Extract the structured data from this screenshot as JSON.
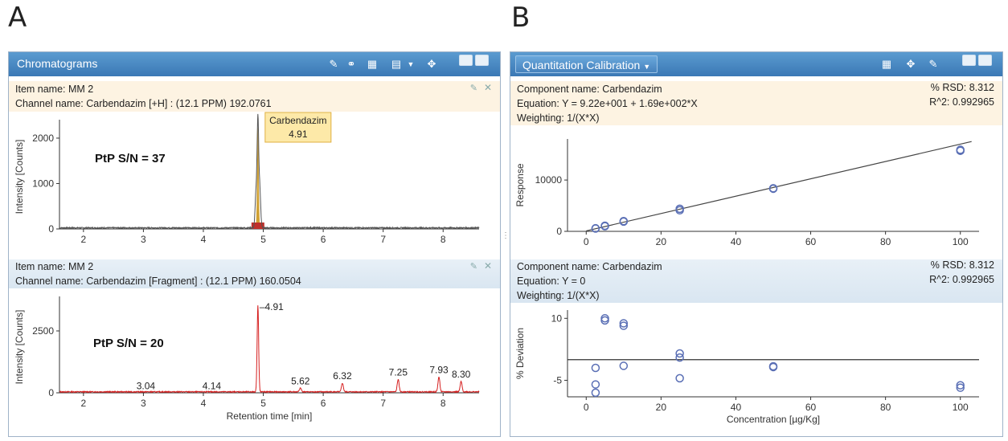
{
  "panel_labels": {
    "a": "A",
    "b": "B"
  },
  "chromatograms": {
    "title": "Chromatograms",
    "upper": {
      "item_name": "Item name: MM 2",
      "channel_name": "Channel name: Carbendazim [+H] : (12.1 PPM) 192.0761",
      "callout_name": "Carbendazim",
      "callout_value": "4.91",
      "sn_label": "PtP S/N = 37",
      "ylabel": "Intensity [Counts]",
      "yticks": [
        "0",
        "1000",
        "2000"
      ],
      "xticks": [
        "2",
        "3",
        "4",
        "5",
        "6",
        "7",
        "8"
      ],
      "trace_color": "#555555",
      "peak_fill": "#c89010"
    },
    "lower": {
      "item_name": "Item name: MM 2",
      "channel_name": "Channel name: Carbendazim [Fragment] : (12.1 PPM) 160.0504",
      "sn_label": "PtP S/N = 20",
      "ylabel": "Intensity [Counts]",
      "xlabel": "Retention time [min]",
      "yticks": [
        "0",
        "2500"
      ],
      "xticks": [
        "2",
        "3",
        "4",
        "5",
        "6",
        "7",
        "8"
      ],
      "peak_labels": [
        "3.04",
        "4.14",
        "4.91",
        "5.62",
        "6.32",
        "7.25",
        "7.93",
        "8.30"
      ],
      "trace_color": "#d62020"
    }
  },
  "calibration": {
    "title": "Quantitation Calibration",
    "upper": {
      "component": "Component name: Carbendazim",
      "equation": "Equation: Y = 9.22e+001 + 1.69e+002*X",
      "weighting": "Weighting: 1/(X*X)",
      "rsd": "% RSD: 8.312",
      "r2": "R^2: 0.992965",
      "ylabel": "Response",
      "yticks": [
        "0",
        "10000"
      ],
      "xticks": [
        "0",
        "20",
        "40",
        "60",
        "80",
        "100"
      ]
    },
    "lower": {
      "component": "Component name: Carbendazim",
      "equation": "Equation: Y = 0",
      "weighting": "Weighting: 1/(X*X)",
      "rsd": "% RSD: 8.312",
      "r2": "R^2: 0.992965",
      "ylabel": "% Deviation",
      "xlabel": "Concentration [µg/Kg]",
      "yticks": [
        "10",
        "-5"
      ],
      "xticks": [
        "0",
        "20",
        "40",
        "60",
        "80",
        "100"
      ]
    }
  },
  "chart_data": [
    {
      "type": "line",
      "title": "Channel name: Carbendazim [+H] : (12.1 PPM) 192.0761",
      "xlabel": "",
      "ylabel": "Intensity [Counts]",
      "xlim": [
        1.6,
        8.6
      ],
      "ylim": [
        0,
        2300
      ],
      "series": [
        {
          "name": "",
          "x": [
            1.6,
            3.5,
            4.6,
            4.85,
            4.88,
            4.91,
            4.94,
            4.97,
            5.05,
            5.5,
            5.7,
            6.2,
            7.5,
            8.6
          ],
          "y": [
            10,
            30,
            10,
            20,
            800,
            2250,
            900,
            30,
            60,
            50,
            80,
            20,
            20,
            10
          ]
        }
      ],
      "annotations": [
        {
          "x": 4.91,
          "text": "Carbendazim 4.91"
        }
      ]
    },
    {
      "type": "line",
      "title": "Channel name: Carbendazim [Fragment] : (12.1 PPM) 160.0504",
      "xlabel": "Retention time [min]",
      "ylabel": "Intensity [Counts]",
      "xlim": [
        1.6,
        8.6
      ],
      "ylim": [
        0,
        3700
      ],
      "series": [
        {
          "name": "",
          "x": [
            1.6,
            3.04,
            4.14,
            4.85,
            4.91,
            4.97,
            5.62,
            6.32,
            7.25,
            7.93,
            8.3,
            8.6
          ],
          "y": [
            20,
            40,
            40,
            60,
            3500,
            60,
            150,
            350,
            500,
            600,
            420,
            40
          ]
        }
      ],
      "peak_labels": [
        3.04,
        4.14,
        4.91,
        5.62,
        6.32,
        7.25,
        7.93,
        8.3
      ]
    },
    {
      "type": "scatter",
      "title": "",
      "xlabel": "",
      "ylabel": "Response",
      "xlim": [
        -5,
        105
      ],
      "ylim": [
        0,
        18000
      ],
      "series": [
        {
          "name": "",
          "x": [
            2.5,
            2.5,
            5,
            5,
            10,
            10,
            25,
            25,
            50,
            50,
            100,
            100
          ],
          "y": [
            550,
            600,
            1000,
            1100,
            1900,
            2000,
            4100,
            4400,
            8300,
            8400,
            15700,
            15900
          ]
        }
      ],
      "fit_line": {
        "intercept": 92.2,
        "slope": 169
      }
    },
    {
      "type": "scatter",
      "title": "",
      "xlabel": "Concentration [µg/Kg]",
      "ylabel": "% Deviation",
      "xlim": [
        -5,
        105
      ],
      "ylim": [
        -9,
        12
      ],
      "series": [
        {
          "name": "",
          "x": [
            2.5,
            2.5,
            2.5,
            5,
            5,
            10,
            10,
            10,
            25,
            25,
            25,
            50,
            50,
            100,
            100
          ],
          "y": [
            -2,
            -6,
            -8,
            10,
            9.5,
            8.8,
            8.2,
            -1.5,
            1.5,
            0.5,
            -4.5,
            -1.8,
            -1.6,
            -6.2,
            -6.8
          ]
        }
      ],
      "reference_line": 0
    }
  ]
}
